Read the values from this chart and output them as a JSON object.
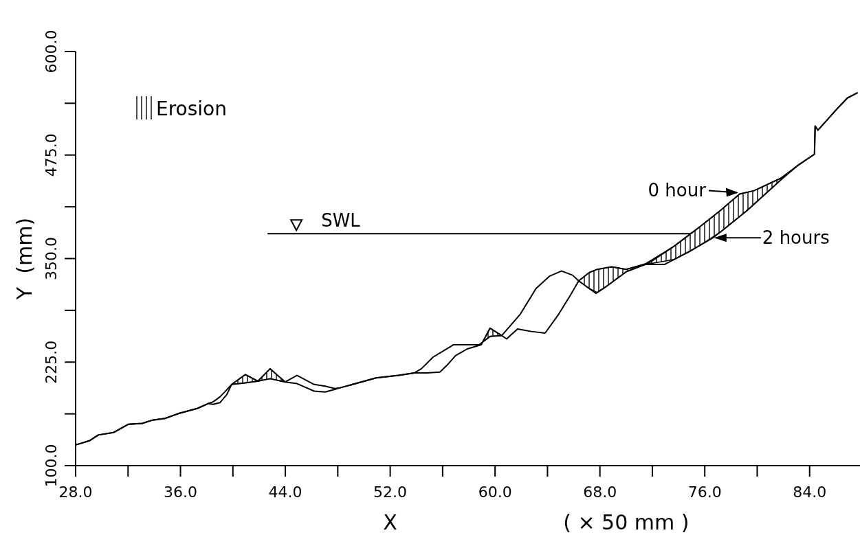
{
  "chart_data": {
    "type": "line",
    "xlabel": "X",
    "ylabel": "Y  (mm)",
    "annotations": [
      "( × 50 mm )"
    ],
    "xlim": [
      28,
      88
    ],
    "ylim": [
      100,
      600
    ],
    "xticks": [
      {
        "value": 28,
        "label": "28.0"
      },
      {
        "value": 32,
        "label": null
      },
      {
        "value": 36,
        "label": "36.0"
      },
      {
        "value": 40,
        "label": null
      },
      {
        "value": 44,
        "label": "44.0"
      },
      {
        "value": 48,
        "label": null
      },
      {
        "value": 52,
        "label": "52.0"
      },
      {
        "value": 56,
        "label": null
      },
      {
        "value": 60,
        "label": "60.0"
      },
      {
        "value": 64,
        "label": null
      },
      {
        "value": 68,
        "label": "68.0"
      },
      {
        "value": 72,
        "label": null
      },
      {
        "value": 76,
        "label": "76.0"
      },
      {
        "value": 80,
        "label": null
      },
      {
        "value": 84,
        "label": "84.0"
      },
      {
        "value": 88,
        "label": null
      }
    ],
    "yticks": [
      {
        "value": 100,
        "label": "100.0"
      },
      {
        "value": 162.5,
        "label": null
      },
      {
        "value": 225,
        "label": "225.0"
      },
      {
        "value": 287.5,
        "label": null
      },
      {
        "value": 350,
        "label": "350.0"
      },
      {
        "value": 412.5,
        "label": null
      },
      {
        "value": 475,
        "label": "475.0"
      },
      {
        "value": 537.5,
        "label": null
      },
      {
        "value": 600,
        "label": "600.0"
      }
    ],
    "grid": false,
    "legend": "top left",
    "marker": "none",
    "line_style": "solid",
    "ref_lines": [
      {
        "axis": "y",
        "value": 380,
        "label": "SWL",
        "color": "#000000"
      }
    ],
    "series": [
      {
        "name": "0 hour",
        "color": "#000000",
        "x": [
          28,
          29.05,
          29.73,
          30.88,
          32.04,
          33.09,
          33.87,
          34.82,
          35.87,
          37.28,
          38.12,
          38.49,
          39.01,
          39.54,
          39.9,
          40.95,
          41.9,
          42.84,
          43.99,
          44.89,
          46.2,
          47.04,
          47.77,
          48.19,
          49.13,
          50.92,
          52.65,
          53.85,
          54.8,
          55.79,
          56.32,
          57.0,
          57.89,
          58.94,
          59.62,
          60.51,
          60.88,
          61.72,
          62.77,
          63.82,
          64.86,
          65.76,
          66.38,
          67.17,
          67.8,
          68.9,
          70.0,
          71.68,
          73.67,
          75.51,
          77.19,
          78.66,
          79.76,
          81.8,
          83.06,
          84.37,
          84.42,
          84.63,
          86.05,
          86.89,
          87.62
        ],
        "values": [
          125,
          130,
          137,
          140,
          150,
          151,
          155,
          157,
          163,
          169,
          175,
          174,
          176,
          186,
          198,
          210,
          202,
          217,
          201,
          199,
          190,
          189,
          192,
          194,
          198,
          206,
          209,
          212,
          212,
          213,
          221,
          233,
          241,
          246,
          266,
          257,
          253,
          265,
          262,
          260,
          283,
          306,
          323,
          333,
          337,
          340,
          337,
          344,
          365,
          387,
          408,
          428,
          432,
          447,
          462,
          476,
          510,
          505,
          530,
          544,
          550
        ]
      },
      {
        "name": "2 hours",
        "color": "#000000",
        "x": [
          28,
          29.05,
          29.73,
          30.88,
          32.04,
          33.09,
          33.87,
          34.82,
          35.87,
          37.28,
          38.12,
          38.49,
          39.01,
          39.38,
          39.9,
          40.95,
          41.9,
          42.84,
          43.99,
          44.89,
          46.2,
          47.04,
          47.77,
          48.19,
          49.13,
          50.92,
          52.65,
          53.85,
          54.38,
          55.27,
          56.84,
          58.78,
          59.62,
          60.51,
          61.93,
          63.13,
          64.18,
          65.07,
          65.91,
          66.38,
          67.7,
          68.38,
          70.0,
          71.47,
          72.94,
          74.78,
          76.61,
          77.35,
          79.23,
          81.8,
          83.06,
          84.37,
          84.42,
          84.63,
          86.05,
          86.89,
          87.62
        ],
        "values": [
          125,
          130,
          137,
          140,
          150,
          151,
          155,
          157,
          163,
          169,
          175,
          177,
          183,
          189,
          198,
          200,
          202,
          205,
          201,
          209,
          198,
          196,
          193,
          194,
          198,
          206,
          209,
          212,
          217,
          231,
          246,
          246,
          256,
          257,
          283,
          314,
          329,
          335,
          330,
          323,
          308,
          315,
          334,
          343,
          343,
          358,
          375,
          384,
          408,
          445,
          462,
          476,
          510,
          505,
          530,
          544,
          550
        ]
      },
      {
        "name": "Erosion",
        "type": "area",
        "color": "#000000",
        "x": [
          39.9,
          40.95,
          41.9,
          42.84,
          43.99,
          50,
          58.94,
          59.62,
          60.51,
          62,
          66.38,
          67.17,
          67.8,
          68.9,
          70.0,
          71.5,
          73.67,
          75.51,
          77.19,
          78.66,
          79.76,
          81.8
        ],
        "values": [
          198,
          210,
          202,
          217,
          201,
          null,
          246,
          266,
          257,
          null,
          323,
          333,
          337,
          340,
          337,
          344,
          365,
          387,
          408,
          428,
          432,
          447
        ]
      }
    ]
  }
}
